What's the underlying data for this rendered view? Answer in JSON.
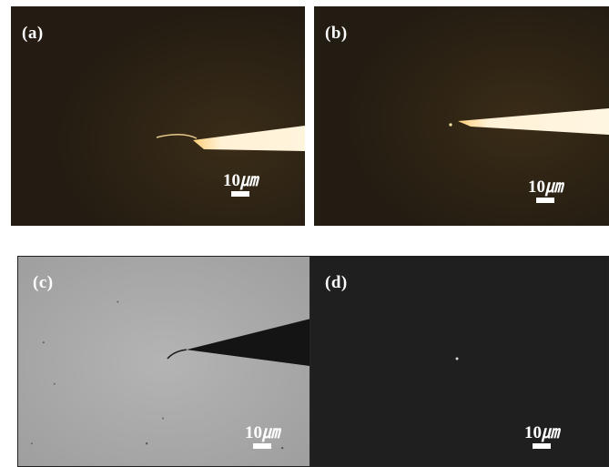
{
  "panels": [
    {
      "label": "(a)",
      "scale_value": "10",
      "scale_unit": "㎛",
      "background": "#2a2116",
      "tip": "bright"
    },
    {
      "label": "(b)",
      "scale_value": "10",
      "scale_unit": "㎛",
      "background": "#272016",
      "tip": "bright"
    },
    {
      "label": "(c)",
      "scale_value": "10",
      "scale_unit": "㎛",
      "background": "#aeaeae",
      "tip": "dark"
    },
    {
      "label": "(d)",
      "scale_value": "10",
      "scale_unit": "㎛",
      "background": "#1f1f1f",
      "tip": "none"
    }
  ],
  "colors": {
    "label_text": "#ffffff",
    "tip_glow": "#fff1d6",
    "tip_edge": "#ffcf7a",
    "tip_dark": "#111111"
  }
}
